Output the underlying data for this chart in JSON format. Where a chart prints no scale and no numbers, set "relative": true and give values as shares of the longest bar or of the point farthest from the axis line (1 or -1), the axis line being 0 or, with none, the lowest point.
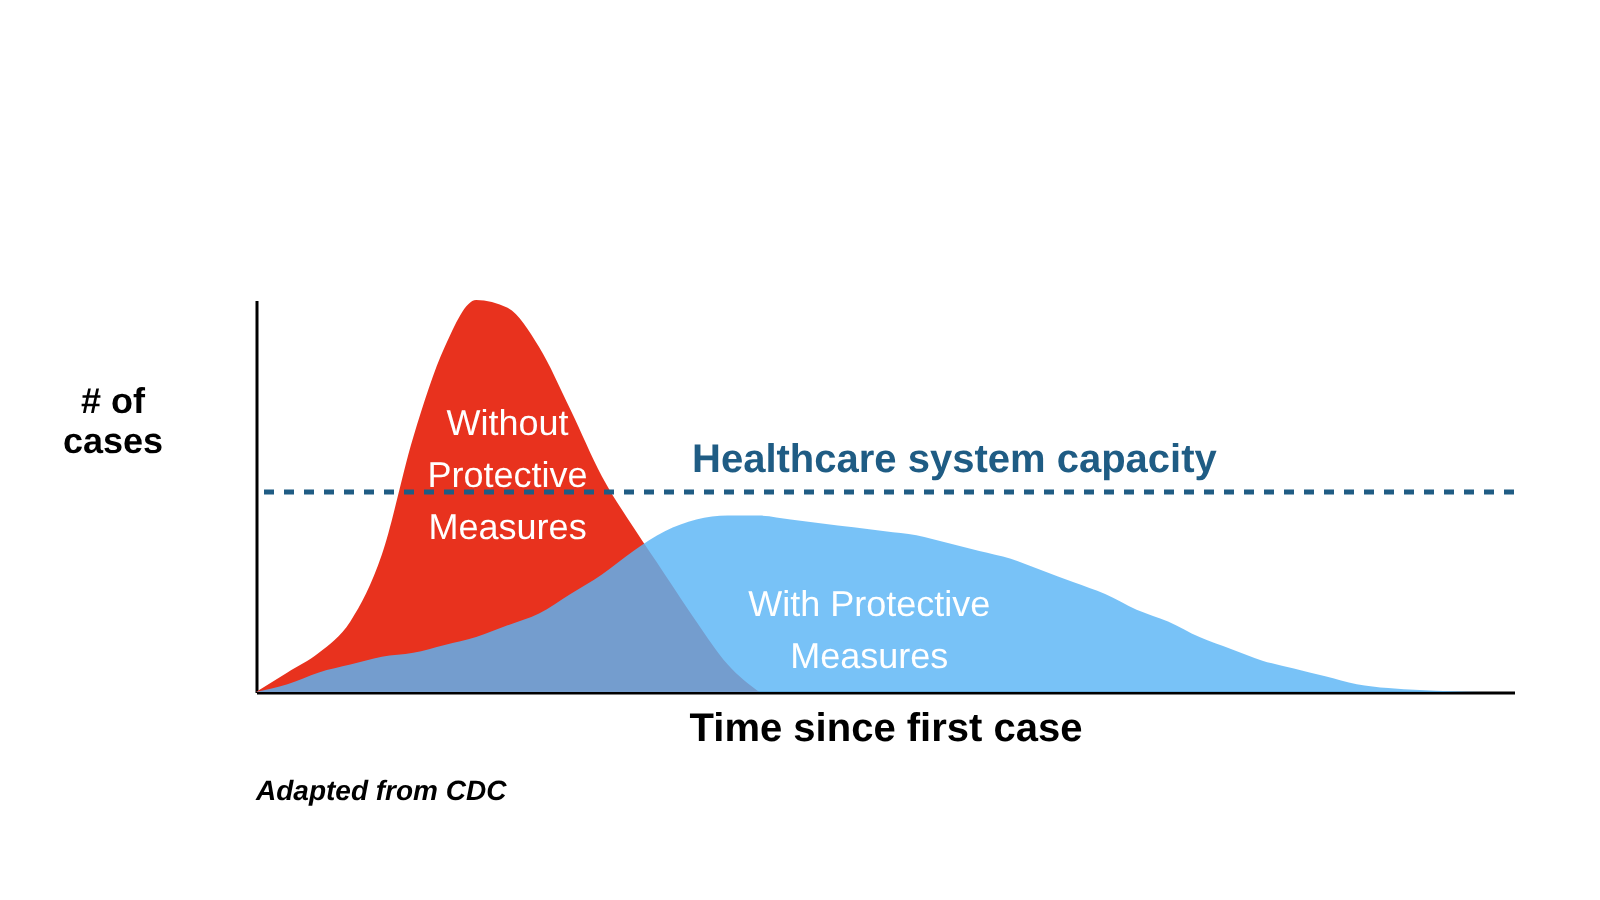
{
  "chart_data": {
    "type": "area",
    "relative": true,
    "xlabel": "Time since first case",
    "ylabel": "# of cases",
    "grid": false,
    "categories": [
      null,
      null,
      null,
      null,
      null,
      null,
      null,
      null,
      null,
      null,
      null,
      null,
      null,
      null,
      null,
      null,
      null,
      null,
      null,
      null,
      null,
      null,
      null,
      null,
      null,
      null,
      null,
      null,
      null,
      null,
      null,
      null,
      null,
      null,
      null,
      null,
      null,
      null,
      null,
      null,
      null
    ],
    "series": [
      {
        "name": "Without Protective Measures",
        "color": "#e8321e",
        "values": [
          0,
          0.05,
          0.1,
          0.18,
          0.35,
          0.65,
          0.88,
          1,
          0.98,
          0.88,
          0.72,
          0.55,
          0.42,
          0.3,
          0.18,
          0.07,
          0,
          null,
          null,
          null,
          null,
          null,
          null,
          null,
          null,
          null,
          null,
          null,
          null,
          null,
          null,
          null,
          null,
          null,
          null,
          null,
          null,
          null,
          null,
          null,
          null
        ]
      },
      {
        "name": "With Protective Measures",
        "color": "#5ab4f5",
        "values": [
          0,
          0.02,
          0.05,
          0.07,
          0.09,
          0.1,
          0.12,
          0.14,
          0.17,
          0.2,
          0.25,
          0.3,
          0.36,
          0.41,
          0.44,
          0.45,
          0.45,
          0.44,
          0.43,
          0.42,
          0.41,
          0.4,
          0.38,
          0.36,
          0.34,
          0.31,
          0.28,
          0.25,
          0.21,
          0.18,
          0.14,
          0.11,
          0.08,
          0.06,
          0.04,
          0.02,
          0.01,
          0.005,
          0.002,
          0,
          null
        ]
      }
    ],
    "ref_lines": [
      {
        "axis": "y",
        "value": 0.51,
        "label": "Healthcare system capacity",
        "color": "#1f5c84",
        "line_style": "dashed"
      }
    ],
    "annotations": [
      "Adapted from CDC"
    ]
  }
}
